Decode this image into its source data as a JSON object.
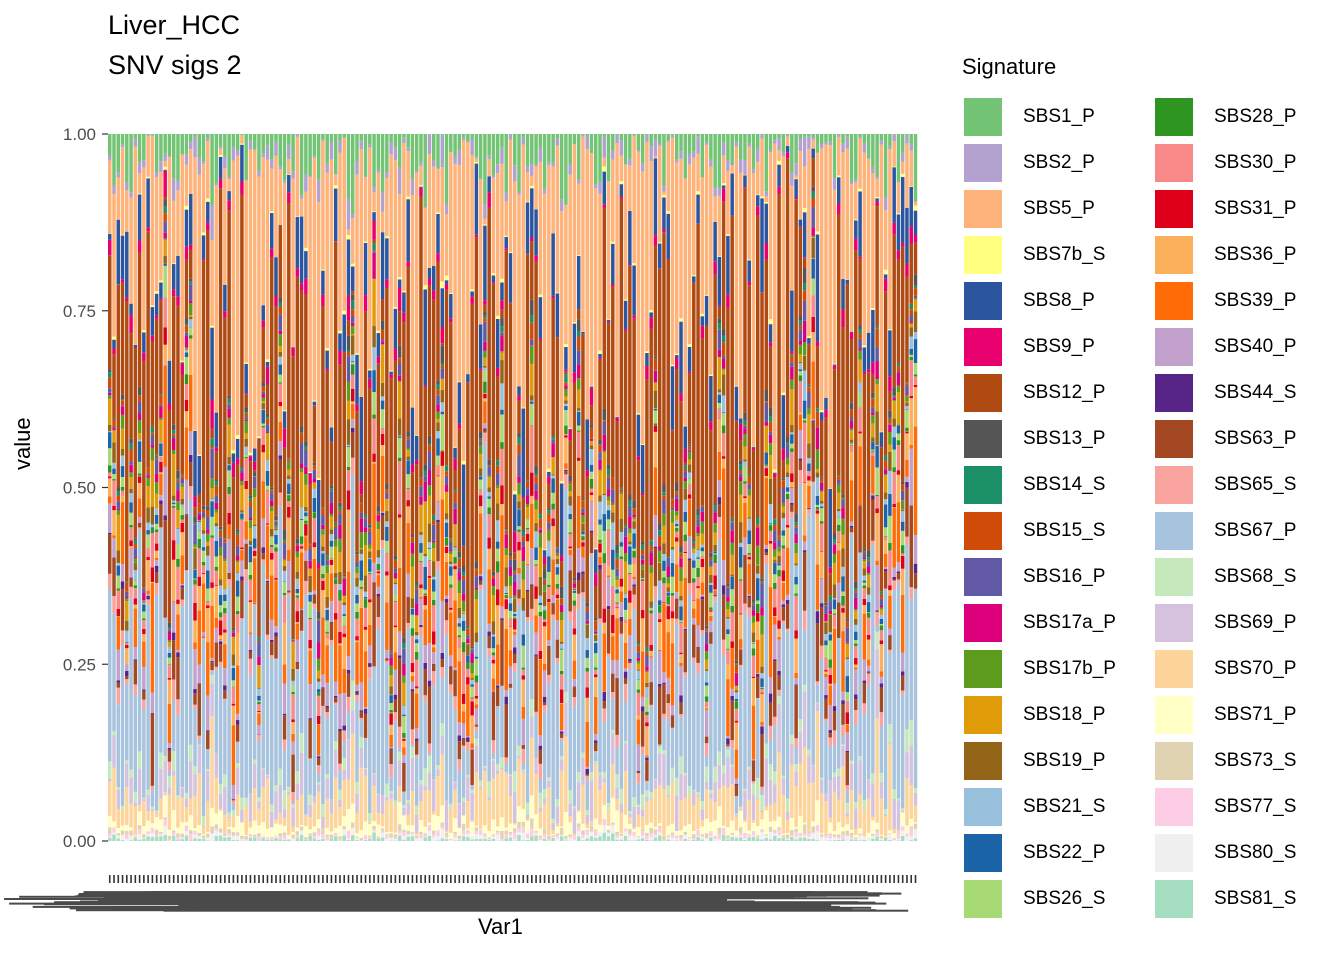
{
  "chart_data": {
    "type": "bar",
    "stacked": true,
    "title": "Liver_HCC",
    "subtitle": "SNV sigs 2",
    "xlabel": "Var1",
    "ylabel": "value",
    "ylim": [
      0,
      1
    ],
    "yticks": [
      "0.00",
      "0.25",
      "0.50",
      "0.75",
      "1.00"
    ],
    "ytick_values": [
      0,
      0.25,
      0.5,
      0.75,
      1.0
    ],
    "n_samples": 190,
    "legend_title": "Signature",
    "legend_position": "right",
    "series": [
      {
        "name": "SBS1_P",
        "color": "#74c476",
        "mean_value": 0.03
      },
      {
        "name": "SBS2_P",
        "color": "#b3a2d0",
        "mean_value": 0.01
      },
      {
        "name": "SBS5_P",
        "color": "#fdb379",
        "mean_value": 0.2
      },
      {
        "name": "SBS7b_S",
        "color": "#ffff80",
        "mean_value": 0.002
      },
      {
        "name": "SBS8_P",
        "color": "#2c55a0",
        "mean_value": 0.04
      },
      {
        "name": "SBS9_P",
        "color": "#e8006e",
        "mean_value": 0.01
      },
      {
        "name": "SBS12_P",
        "color": "#b04a13",
        "mean_value": 0.2
      },
      {
        "name": "SBS13_P",
        "color": "#555555",
        "mean_value": 0.005
      },
      {
        "name": "SBS14_S",
        "color": "#1b9066",
        "mean_value": 0.003
      },
      {
        "name": "SBS15_S",
        "color": "#d04b08",
        "mean_value": 0.006
      },
      {
        "name": "SBS16_P",
        "color": "#6159a5",
        "mean_value": 0.01
      },
      {
        "name": "SBS17a_P",
        "color": "#dd007d",
        "mean_value": 0.008
      },
      {
        "name": "SBS17b_P",
        "color": "#5c9b1c",
        "mean_value": 0.008
      },
      {
        "name": "SBS18_P",
        "color": "#e09c08",
        "mean_value": 0.02
      },
      {
        "name": "SBS19_P",
        "color": "#946418",
        "mean_value": 0.01
      },
      {
        "name": "SBS21_S",
        "color": "#99c0dc",
        "mean_value": 0.01
      },
      {
        "name": "SBS22_P",
        "color": "#1b64a8",
        "mean_value": 0.01
      },
      {
        "name": "SBS26_S",
        "color": "#a7d975",
        "mean_value": 0.01
      },
      {
        "name": "SBS28_P",
        "color": "#2e9520",
        "mean_value": 0.005
      },
      {
        "name": "SBS30_P",
        "color": "#f78989",
        "mean_value": 0.02
      },
      {
        "name": "SBS31_P",
        "color": "#dd0018",
        "mean_value": 0.008
      },
      {
        "name": "SBS36_P",
        "color": "#fdb05b",
        "mean_value": 0.02
      },
      {
        "name": "SBS39_P",
        "color": "#ff6c08",
        "mean_value": 0.04
      },
      {
        "name": "SBS40_P",
        "color": "#c2a2cc",
        "mean_value": 0.02
      },
      {
        "name": "SBS44_S",
        "color": "#572488",
        "mean_value": 0.004
      },
      {
        "name": "SBS63_P",
        "color": "#a34822",
        "mean_value": 0.03
      },
      {
        "name": "SBS65_S",
        "color": "#f8a39d",
        "mean_value": 0.01
      },
      {
        "name": "SBS67_P",
        "color": "#a8c3de",
        "mean_value": 0.14
      },
      {
        "name": "SBS68_S",
        "color": "#c6e8bd",
        "mean_value": 0.01
      },
      {
        "name": "SBS69_P",
        "color": "#d5c2de",
        "mean_value": 0.02
      },
      {
        "name": "SBS70_P",
        "color": "#fdd49a",
        "mean_value": 0.03
      },
      {
        "name": "SBS71_P",
        "color": "#ffffc6",
        "mean_value": 0.01
      },
      {
        "name": "SBS73_S",
        "color": "#dfd3b1",
        "mean_value": 0.003
      },
      {
        "name": "SBS77_S",
        "color": "#fdcde5",
        "mean_value": 0.003
      },
      {
        "name": "SBS80_S",
        "color": "#f0f0f0",
        "mean_value": 0.003
      },
      {
        "name": "SBS81_S",
        "color": "#a6dec2",
        "mean_value": 0.003
      }
    ]
  }
}
